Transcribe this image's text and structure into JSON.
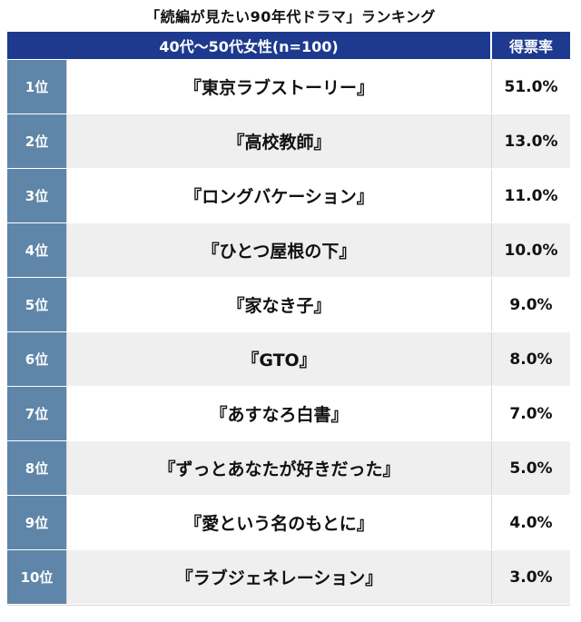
{
  "title": "「続編が見たい90年代ドラマ」ランキング",
  "header": {
    "group_label": "40代〜50代女性(n=100)",
    "rate_label": "得票率"
  },
  "rows": [
    {
      "rank": "1位",
      "name": "『東京ラブストーリー』",
      "rate": "51.0%"
    },
    {
      "rank": "2位",
      "name": "『高校教師』",
      "rate": "13.0%"
    },
    {
      "rank": "3位",
      "name": "『ロングバケーション』",
      "rate": "11.0%"
    },
    {
      "rank": "4位",
      "name": "『ひとつ屋根の下』",
      "rate": "10.0%"
    },
    {
      "rank": "5位",
      "name": "『家なき子』",
      "rate": "9.0%"
    },
    {
      "rank": "6位",
      "name": "『GTO』",
      "rate": "8.0%"
    },
    {
      "rank": "7位",
      "name": "『あすなろ白書』",
      "rate": "7.0%"
    },
    {
      "rank": "8位",
      "name": "『ずっとあなたが好きだった』",
      "rate": "5.0%"
    },
    {
      "rank": "9位",
      "name": "『愛という名のもとに』",
      "rate": "4.0%"
    },
    {
      "rank": "10位",
      "name": "『ラブジェネレーション』",
      "rate": "3.0%"
    }
  ]
}
